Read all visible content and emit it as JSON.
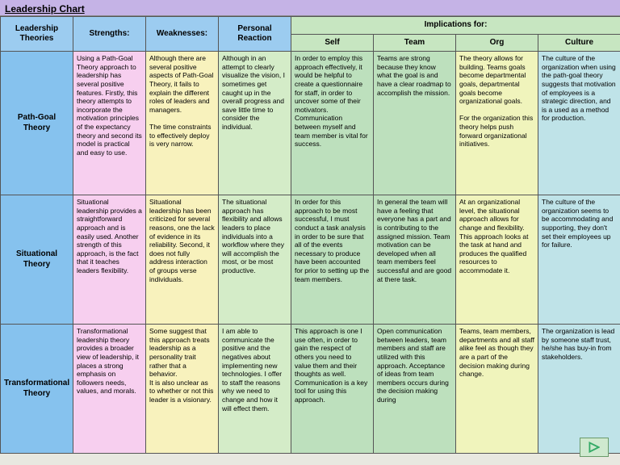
{
  "title": "Leadership Chart",
  "colors": {
    "title_bar": "#c5b3e6",
    "header_blue": "#9cccf0",
    "header_green": "#c7e6c1",
    "theory_col": "#86c2ee",
    "strengths": "#f7cfef",
    "weaknesses": "#f8f2bd",
    "reaction": "#d4ecc8",
    "imp_self": "#bde0bd",
    "imp_team": "#bde0bd",
    "imp_org": "#f0f4bc",
    "imp_culture": "#bfe3e8",
    "nav_btn": "#cfe9cf"
  },
  "headers": {
    "theories": "Leadership\nTheories",
    "strengths": "Strengths:",
    "weaknesses": "Weaknesses:",
    "reaction": "Personal\nReaction",
    "implications": "Implications for:",
    "self": "Self",
    "team": "Team",
    "org": "Org",
    "culture": "Culture"
  },
  "rows": [
    {
      "name": "Path-Goal Theory",
      "strengths": "Using a Path-Goal Theory approach to leadership has several positive features. Firstly, this theory attempts to incorporate the motivation principles of the expectancy theory and second its model is practical and easy to use.",
      "weaknesses": "Although there are several positive aspects of Path-Goal Theory, it fails to explain the different roles of leaders and managers.\n\nThe time constraints to effectively deploy is very narrow.",
      "reaction": "Although in an attempt to clearly visualize the vision, I sometimes get caught up in the overall progress and save little time to consider the individual.",
      "self": "In order to employ this approach effectively, it would be helpful to create a questionnaire for staff, in order to uncover some of their motivators. Communication between myself and team member is vital for success.",
      "team": "Teams are strong because they know what the goal is and have a clear roadmap to accomplish the mission.",
      "org": "The theory allows for building. Teams goals become departmental goals, departmental goals become organizational goals.\n\nFor the organization this theory helps push forward organizational initiatives.",
      "culture": "The culture of the organization when using the path-goal theory suggests that motivation of employees is a strategic direction, and is a used as a method for production."
    },
    {
      "name": "Situational Theory",
      "strengths": "Situational leadership provides a straightforward approach and is easily used. Another strength of this approach, is the fact that it teaches leaders flexibility.",
      "weaknesses": "Situational leadership has been criticized for several reasons, one the lack of evidence in its reliability. Second, it does not fully address interaction of groups verse individuals.",
      "reaction": "The situational approach has flexibility and allows leaders to place individuals into a workflow where they will accomplish the most, or be most productive.",
      "self": "In order for this approach to be most successful, I must conduct a task analysis in order to be sure that all of the events necessary to produce have been accounted for prior to setting up the team members.",
      "team": "In general the team will have a feeling that everyone has a part and is contributing to the assigned mission. Team motivation can be developed when all team members feel successful and are good at there task.",
      "org": "At an organizational level, the situational approach allows for change and flexibility. This approach looks at the task at hand and produces the qualified resources to accommodate it.",
      "culture": "The culture of the organization seems to be accommodating and supporting, they don't set their employees up for failure."
    },
    {
      "name": "Transformational Theory",
      "strengths": "Transformational leadership theory provides a broader view of leadership, it places a strong emphasis on followers needs, values, and morals.",
      "weaknesses": "Some suggest that this approach treats leadership as a personality trait rather that a behavior.\nIt is also unclear as to whether or not this leader is a visionary.",
      "reaction": "I am able to communicate the positive and the negatives about implementing new technologies. I offer to staff the reasons why we need to change and how it will effect them.",
      "self": "This approach is one I use often, in order to gain the respect of others you need to value them and their thoughts as well. Communication is a key tool for using this approach.",
      "team": "Open communication between leaders, team members and staff are utilized with this approach. Acceptance of ideas from team members occurs during the decision making during",
      "org": "Teams, team members, departments and all staff alike feel as though they are a part of the decision making during change.",
      "culture": "The organization is lead by someone staff trust, he/she has buy-in from stakeholders."
    }
  ]
}
